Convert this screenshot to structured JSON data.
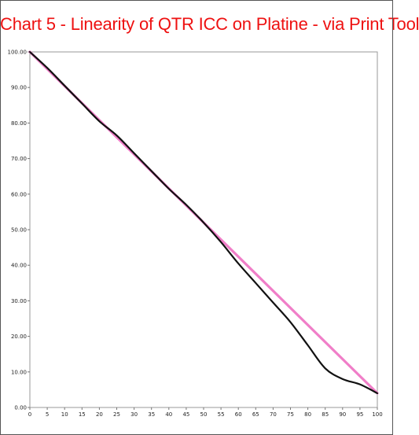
{
  "chart_data": {
    "type": "line",
    "title": "Chart 5 - Linearity of QTR ICC on Platine - via Print Tool",
    "xlabel": "",
    "ylabel": "",
    "xlim": [
      0,
      100
    ],
    "ylim": [
      0,
      100
    ],
    "x_ticks": [
      "0",
      "5",
      "10",
      "15",
      "20",
      "25",
      "30",
      "35",
      "40",
      "45",
      "50",
      "55",
      "60",
      "65",
      "70",
      "75",
      "80",
      "85",
      "90",
      "95",
      "100"
    ],
    "y_ticks": [
      "0.00",
      "10.00",
      "20.00",
      "30.00",
      "40.00",
      "50.00",
      "60.00",
      "70.00",
      "80.00",
      "90.00",
      "100.00"
    ],
    "grid": false,
    "legend": "none",
    "series": [
      {
        "color": "#f07ec8",
        "x": [
          0,
          100
        ],
        "y": [
          100,
          4
        ]
      },
      {
        "color": "#111111",
        "x": [
          0,
          5,
          10,
          15,
          20,
          25,
          30,
          35,
          40,
          45,
          50,
          55,
          60,
          65,
          70,
          75,
          80,
          85,
          90,
          95,
          100
        ],
        "y": [
          100,
          95.5,
          90.5,
          85.5,
          80.5,
          76.5,
          71.5,
          66.5,
          61.5,
          57,
          52,
          46.5,
          40.5,
          35,
          29.5,
          24,
          17.5,
          11,
          8,
          6.5,
          4
        ]
      }
    ]
  }
}
